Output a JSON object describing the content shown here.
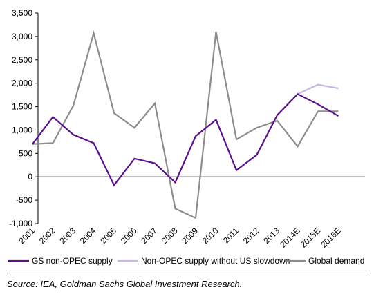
{
  "chart_data": {
    "type": "line",
    "categories": [
      "2001",
      "2002",
      "2003",
      "2004",
      "2005",
      "2006",
      "2007",
      "2008",
      "2009",
      "2010",
      "2011",
      "2012",
      "2013",
      "2014E",
      "2015E",
      "2016E"
    ],
    "ylim": [
      -1000,
      3500
    ],
    "yticks": [
      -1000,
      -500,
      0,
      500,
      1000,
      1500,
      2000,
      2500,
      3000,
      3500
    ],
    "ytick_labels": [
      "-1,000",
      "-500",
      "0",
      "500",
      "1,000",
      "1,500",
      "2,000",
      "2,500",
      "3,000",
      "3,500"
    ],
    "grid": false,
    "legend_position": "bottom",
    "series": [
      {
        "name": "GS non-OPEC supply",
        "color": "#5b0f8a",
        "values": [
          700,
          1280,
          900,
          720,
          -180,
          390,
          290,
          -120,
          870,
          1220,
          140,
          470,
          1320,
          1770,
          1550,
          1300
        ]
      },
      {
        "name": "Non-OPEC supply without US slowdown",
        "color": "#c7b6e6",
        "values": [
          null,
          null,
          null,
          null,
          null,
          null,
          null,
          null,
          null,
          null,
          null,
          null,
          null,
          1770,
          1970,
          1890
        ]
      },
      {
        "name": "Global demand",
        "color": "#8c8c8c",
        "values": [
          700,
          720,
          1520,
          3070,
          1360,
          1050,
          1570,
          -680,
          -880,
          3100,
          800,
          1050,
          1200,
          650,
          1400,
          1400
        ]
      }
    ]
  },
  "source": "Source: IEA, Goldman Sachs Global Investment Research."
}
